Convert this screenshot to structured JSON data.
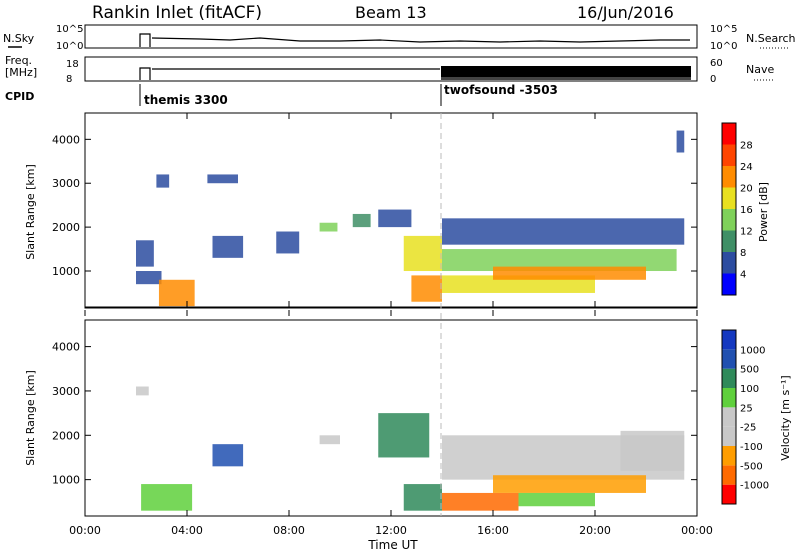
{
  "header": {
    "title": "Rankin Inlet (fitACF)",
    "beam": "Beam 13",
    "date": "16/Jun/2016"
  },
  "panels": {
    "nsky_label": "N.Sky",
    "nsky_tick_top": "10^5",
    "nsky_tick_bottom": "10^0",
    "nsearch_label": "N.Search",
    "nsearch_tick_top": "10^5",
    "nsearch_tick_bottom": "10^0",
    "freq_label_1": "Freq.",
    "freq_label_2": "[MHz]",
    "freq_tick_top": "18",
    "freq_tick_bottom": "8",
    "nave_label": "Nave",
    "nave_tick_top": "60",
    "nave_tick_bottom": "0",
    "cpid_label": "CPID",
    "cpid_1": "themis 3300",
    "cpid_2": "twofsound -3503"
  },
  "colors": {
    "power": [
      "#0000ff",
      "#2c4ca0",
      "#3f8f66",
      "#7fd15a",
      "#e8e020",
      "#ff8c00",
      "#ff4500",
      "#ff0000"
    ],
    "velocity": [
      "#ff0000",
      "#ff6a00",
      "#ff9d00",
      "#c8c8c8",
      "#c8c8c8",
      "#5fd03c",
      "#2f8a5a",
      "#2050b0",
      "#1438c0"
    ]
  },
  "chart_data": [
    {
      "type": "heatmap",
      "name": "power",
      "xlabel": "",
      "ylabel": "Slant Range [km]",
      "xlim": [
        0,
        24
      ],
      "ylim": [
        180,
        4600
      ],
      "yticks": [
        1000,
        2000,
        3000,
        4000
      ],
      "ytick_labels": [
        "1000",
        "2000",
        "3000",
        "4000"
      ],
      "colorbar_label": "Power [dB]",
      "colorbar_ticks": [
        "4",
        "8",
        "12",
        "16",
        "20",
        "24",
        "28"
      ],
      "regions": [
        {
          "x": [
            2.0,
            2.7
          ],
          "y": [
            1100,
            1700
          ],
          "level": 1
        },
        {
          "x": [
            2.8,
            3.3
          ],
          "y": [
            2900,
            3200
          ],
          "level": 1
        },
        {
          "x": [
            2.0,
            3.0
          ],
          "y": [
            700,
            1000
          ],
          "level": 1
        },
        {
          "x": [
            2.9,
            4.3
          ],
          "y": [
            200,
            800
          ],
          "level": 5
        },
        {
          "x": [
            4.8,
            6.0
          ],
          "y": [
            3000,
            3200
          ],
          "level": 1
        },
        {
          "x": [
            5.0,
            6.2
          ],
          "y": [
            1300,
            1800
          ],
          "level": 1
        },
        {
          "x": [
            7.5,
            8.4
          ],
          "y": [
            1400,
            1900
          ],
          "level": 1
        },
        {
          "x": [
            9.2,
            9.9
          ],
          "y": [
            1900,
            2100
          ],
          "level": 3
        },
        {
          "x": [
            10.5,
            11.2
          ],
          "y": [
            2000,
            2300
          ],
          "level": 2
        },
        {
          "x": [
            11.5,
            12.8
          ],
          "y": [
            2000,
            2400
          ],
          "level": 1
        },
        {
          "x": [
            12.5,
            14.0
          ],
          "y": [
            1000,
            1800
          ],
          "level": 4
        },
        {
          "x": [
            12.8,
            14.0
          ],
          "y": [
            300,
            900
          ],
          "level": 5
        },
        {
          "x": [
            14.0,
            23.2
          ],
          "y": [
            1000,
            1500
          ],
          "level": 3
        },
        {
          "x": [
            14.0,
            20.0
          ],
          "y": [
            500,
            900
          ],
          "level": 4
        },
        {
          "x": [
            14.0,
            23.5
          ],
          "y": [
            1600,
            2200
          ],
          "level": 1
        },
        {
          "x": [
            16.0,
            22.0
          ],
          "y": [
            800,
            1100
          ],
          "level": 5
        },
        {
          "x": [
            23.2,
            23.5
          ],
          "y": [
            3700,
            4200
          ],
          "level": 1
        }
      ]
    },
    {
      "type": "heatmap",
      "name": "velocity",
      "xlabel": "Time UT",
      "ylabel": "Slant Range [km]",
      "xlim": [
        0,
        24
      ],
      "ylim": [
        180,
        4600
      ],
      "xticks": [
        0,
        4,
        8,
        12,
        16,
        20,
        24
      ],
      "xtick_labels": [
        "00:00",
        "04:00",
        "08:00",
        "12:00",
        "16:00",
        "20:00",
        "00:00"
      ],
      "yticks": [
        1000,
        2000,
        3000,
        4000
      ],
      "ytick_labels": [
        "1000",
        "2000",
        "3000",
        "4000"
      ],
      "colorbar_label": "Velocity [m s⁻¹]",
      "colorbar_ticks": [
        "1000",
        "500",
        "100",
        "25",
        "-25",
        "-100",
        "-500",
        "-1000"
      ],
      "regions": [
        {
          "x": [
            2.0,
            2.5
          ],
          "y": [
            2900,
            3100
          ],
          "level": 3
        },
        {
          "x": [
            2.2,
            4.2
          ],
          "y": [
            300,
            900
          ],
          "level": 5
        },
        {
          "x": [
            5.0,
            6.2
          ],
          "y": [
            1300,
            1800
          ],
          "level": 7
        },
        {
          "x": [
            9.2,
            10.0
          ],
          "y": [
            1800,
            2000
          ],
          "level": 3
        },
        {
          "x": [
            11.5,
            13.5
          ],
          "y": [
            1500,
            2500
          ],
          "level": 6
        },
        {
          "x": [
            12.5,
            14.0
          ],
          "y": [
            300,
            900
          ],
          "level": 6
        },
        {
          "x": [
            14.0,
            17.0
          ],
          "y": [
            300,
            700
          ],
          "level": 1
        },
        {
          "x": [
            14.0,
            23.5
          ],
          "y": [
            1000,
            2000
          ],
          "level": 3
        },
        {
          "x": [
            16.0,
            22.0
          ],
          "y": [
            700,
            1100
          ],
          "level": 2
        },
        {
          "x": [
            17.0,
            20.0
          ],
          "y": [
            400,
            700
          ],
          "level": 5
        },
        {
          "x": [
            21.0,
            23.5
          ],
          "y": [
            1200,
            2100
          ],
          "level": 3
        }
      ]
    }
  ]
}
